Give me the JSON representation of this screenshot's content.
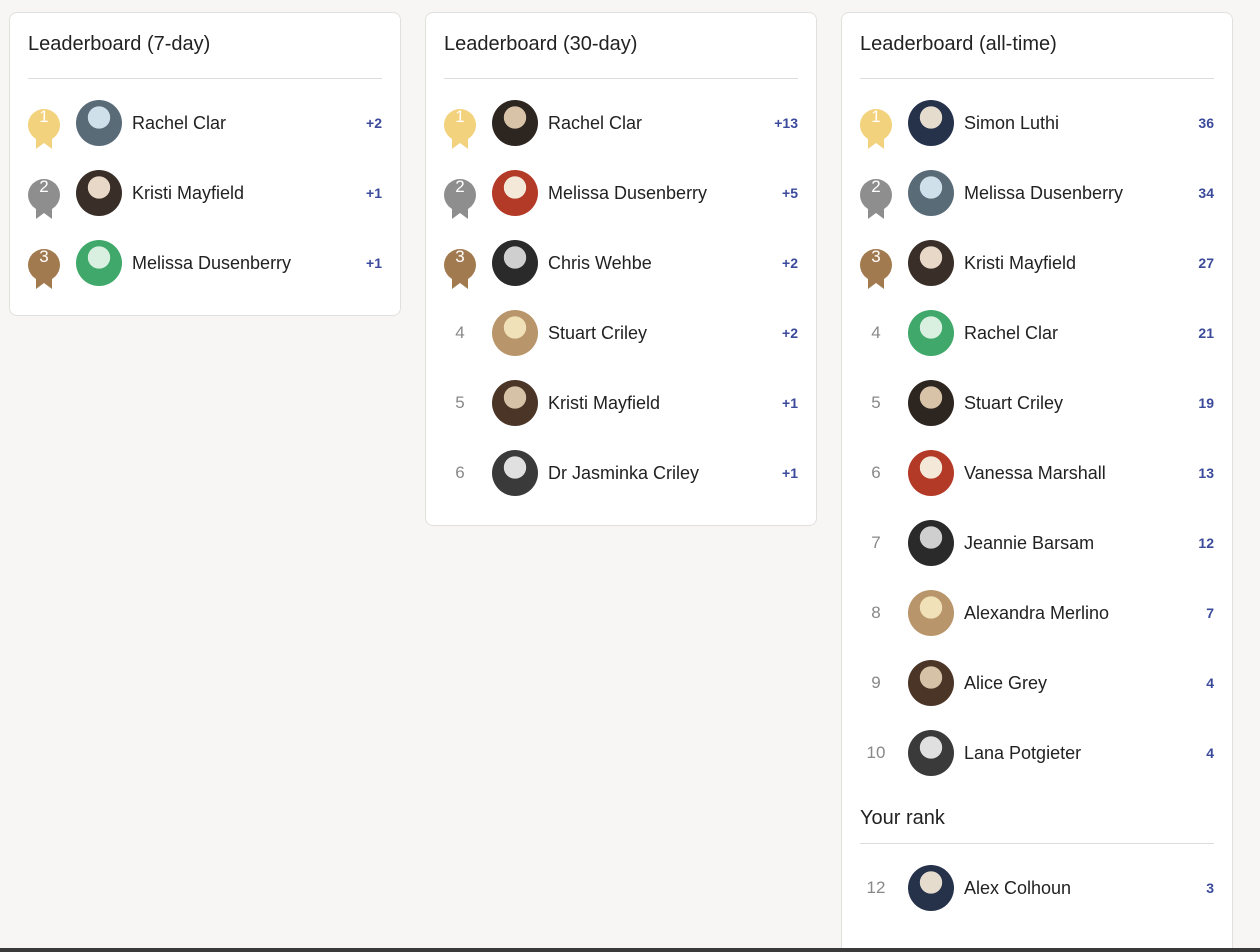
{
  "boards": [
    {
      "title": "Leaderboard (7-day)",
      "rows": [
        {
          "rank": 1,
          "name": "Rachel Clar",
          "score": "+2"
        },
        {
          "rank": 2,
          "name": "Kristi Mayfield",
          "score": "+1"
        },
        {
          "rank": 3,
          "name": "Melissa Dusenberry",
          "score": "+1"
        }
      ]
    },
    {
      "title": "Leaderboard (30-day)",
      "rows": [
        {
          "rank": 1,
          "name": "Rachel Clar",
          "score": "+13"
        },
        {
          "rank": 2,
          "name": "Melissa Dusenberry",
          "score": "+5"
        },
        {
          "rank": 3,
          "name": "Chris Wehbe",
          "score": "+2"
        },
        {
          "rank": 4,
          "name": "Stuart Criley",
          "score": "+2"
        },
        {
          "rank": 5,
          "name": "Kristi Mayfield",
          "score": "+1"
        },
        {
          "rank": 6,
          "name": "Dr Jasminka Criley",
          "score": "+1"
        }
      ]
    },
    {
      "title": "Leaderboard (all-time)",
      "rows": [
        {
          "rank": 1,
          "name": "Simon Luthi",
          "score": 36
        },
        {
          "rank": 2,
          "name": "Melissa Dusenberry",
          "score": 34
        },
        {
          "rank": 3,
          "name": "Kristi Mayfield",
          "score": 27
        },
        {
          "rank": 4,
          "name": "Rachel Clar",
          "score": 21
        },
        {
          "rank": 5,
          "name": "Stuart Criley",
          "score": 19
        },
        {
          "rank": 6,
          "name": "Vanessa Marshall",
          "score": 13
        },
        {
          "rank": 7,
          "name": "Jeannie Barsam",
          "score": 12
        },
        {
          "rank": 8,
          "name": "Alexandra Merlino",
          "score": 7
        },
        {
          "rank": 9,
          "name": "Alice Grey",
          "score": 4
        },
        {
          "rank": 10,
          "name": "Lana Potgieter",
          "score": 4
        }
      ],
      "your_rank": {
        "title": "Your rank",
        "rows": [
          {
            "rank": 12,
            "name": "Alex Colhoun",
            "score": 3
          }
        ]
      }
    }
  ]
}
